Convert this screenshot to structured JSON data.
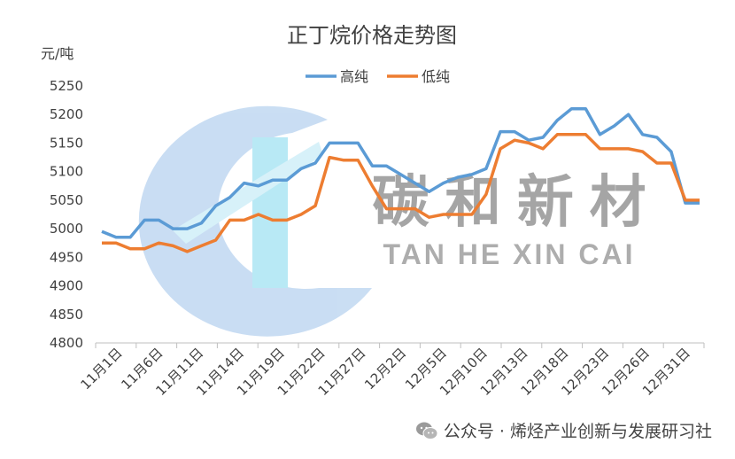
{
  "chart_data": {
    "type": "line",
    "title": "正丁烷价格走势图",
    "ylabel": "元/吨",
    "ylim": [
      4800,
      5250
    ],
    "yticks": [
      4800,
      4850,
      4900,
      4950,
      5000,
      5050,
      5100,
      5150,
      5200,
      5250
    ],
    "grid": false,
    "legend_position": "top",
    "x_tick_labels": [
      "11月1日",
      "11月6日",
      "11月11日",
      "11月14日",
      "11月19日",
      "11月22日",
      "11月27日",
      "12月2日",
      "12月5日",
      "12月10日",
      "12月13日",
      "12月18日",
      "12月23日",
      "12月26日",
      "12月31日"
    ],
    "series": [
      {
        "name": "高纯",
        "color": "#5b9bd5",
        "values": [
          4995,
          4985,
          4985,
          5015,
          5015,
          5000,
          5000,
          5010,
          5040,
          5055,
          5080,
          5075,
          5085,
          5085,
          5105,
          5115,
          5150,
          5150,
          5150,
          5110,
          5110,
          5095,
          5080,
          5065,
          5080,
          5090,
          5095,
          5105,
          5170,
          5170,
          5155,
          5160,
          5190,
          5210,
          5210,
          5165,
          5180,
          5200,
          5165,
          5160,
          5135,
          5045,
          5045
        ]
      },
      {
        "name": "低纯",
        "color": "#ed7d31",
        "values": [
          4975,
          4975,
          4965,
          4965,
          4975,
          4970,
          4960,
          4970,
          4980,
          5015,
          5015,
          5025,
          5015,
          5015,
          5025,
          5040,
          5125,
          5120,
          5120,
          5075,
          5035,
          5035,
          5035,
          5020,
          5025,
          5025,
          5025,
          5060,
          5140,
          5155,
          5150,
          5140,
          5165,
          5165,
          5165,
          5140,
          5140,
          5140,
          5135,
          5115,
          5115,
          5050,
          5050
        ]
      }
    ]
  },
  "watermark": {
    "chinese": "碳 和 新 材",
    "pinyin": "TAN  HE  XIN  CAI"
  },
  "footer": {
    "text": "公众号 · 烯烃产业创新与发展研习社"
  }
}
